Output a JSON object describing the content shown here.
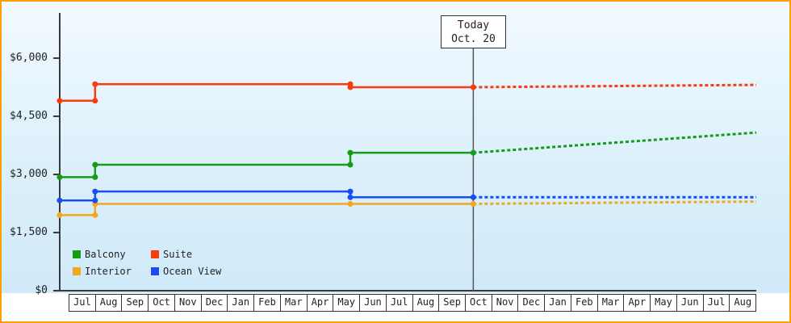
{
  "frame": {
    "border_color": "#ffa000"
  },
  "today_box": {
    "line1": "Today",
    "line2": "Oct. 20"
  },
  "chart_data": {
    "type": "line",
    "subtype": "step-line with dashed forecast after today marker",
    "x_unit": "fractional month index; 0 = start of first Jul cell, 26 = right edge, y-axis line at -0.34",
    "x_tick_labels": [
      "Jul",
      "Aug",
      "Sep",
      "Oct",
      "Nov",
      "Dec",
      "Jan",
      "Feb",
      "Mar",
      "Apr",
      "May",
      "Jun",
      "Jul",
      "Aug",
      "Sep",
      "Oct",
      "Nov",
      "Dec",
      "Jan",
      "Feb",
      "Mar",
      "Apr",
      "May",
      "Jun",
      "Jul",
      "Aug"
    ],
    "ylim": [
      0,
      6500
    ],
    "yticks": [
      0,
      1500,
      3000,
      4500,
      6000
    ],
    "ytick_labels": [
      "$0",
      "$1,500",
      "$3,000",
      "$4,500",
      "$6,000"
    ],
    "grid": false,
    "today_x": 15.3,
    "legend_position": "bottom-left",
    "legend": {
      "items": [
        {
          "label": "Balcony",
          "color": "#169c16"
        },
        {
          "label": "Suite",
          "color": "#f93c0c"
        },
        {
          "label": "Interior",
          "color": "#f2a71f"
        },
        {
          "label": "Ocean View",
          "color": "#1b4df2"
        }
      ]
    },
    "series": [
      {
        "name": "Interior",
        "color": "#f2a71f",
        "solid_points": [
          [
            -0.34,
            1950
          ],
          [
            1,
            1950
          ],
          [
            1,
            2240
          ],
          [
            10.65,
            2240
          ],
          [
            15.3,
            2240
          ]
        ],
        "forecast_points": [
          [
            15.3,
            2240
          ],
          [
            26,
            2300
          ]
        ]
      },
      {
        "name": "Ocean View",
        "color": "#1b4df2",
        "solid_points": [
          [
            -0.34,
            2330
          ],
          [
            1,
            2330
          ],
          [
            1,
            2560
          ],
          [
            10.65,
            2560
          ],
          [
            10.65,
            2410
          ],
          [
            15.3,
            2410
          ]
        ],
        "forecast_points": [
          [
            15.3,
            2410
          ],
          [
            26,
            2410
          ]
        ]
      },
      {
        "name": "Balcony",
        "color": "#169c16",
        "solid_points": [
          [
            -0.34,
            2930
          ],
          [
            1,
            2930
          ],
          [
            1,
            3250
          ],
          [
            10.65,
            3250
          ],
          [
            10.65,
            3560
          ],
          [
            15.3,
            3560
          ]
        ],
        "forecast_points": [
          [
            15.3,
            3560
          ],
          [
            26,
            4080
          ]
        ]
      },
      {
        "name": "Suite",
        "color": "#f93c0c",
        "solid_points": [
          [
            -0.34,
            4900
          ],
          [
            1,
            4900
          ],
          [
            1,
            5330
          ],
          [
            10.65,
            5330
          ],
          [
            10.65,
            5250
          ],
          [
            15.3,
            5250
          ]
        ],
        "forecast_points": [
          [
            15.3,
            5250
          ],
          [
            26,
            5310
          ]
        ]
      }
    ]
  }
}
